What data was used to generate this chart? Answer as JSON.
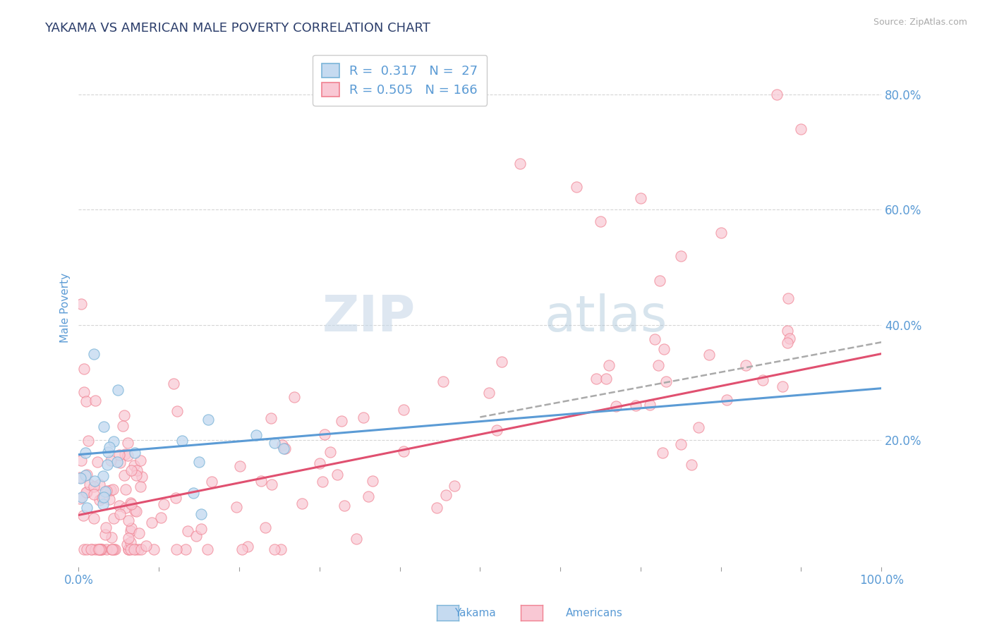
{
  "title": "YAKAMA VS AMERICAN MALE POVERTY CORRELATION CHART",
  "source_text": "Source: ZipAtlas.com",
  "ylabel": "Male Poverty",
  "xlim": [
    0.0,
    1.0
  ],
  "ylim": [
    -0.02,
    0.88
  ],
  "legend_r1": "R =  0.317",
  "legend_n1": "N =  27",
  "legend_r2": "R = 0.505",
  "legend_n2": "N = 166",
  "color_yakama_fill": "#c5daf0",
  "color_yakama_edge": "#7ab4d8",
  "color_americans_fill": "#f9c8d4",
  "color_americans_edge": "#f08090",
  "color_line_yakama": "#5b9bd5",
  "color_line_americans": "#e05070",
  "color_title": "#2c3e6b",
  "color_axis_labels": "#5b9bd5",
  "color_source": "#aaaaaa",
  "watermark_zip": "ZIP",
  "watermark_atlas": "atlas",
  "background_color": "#ffffff",
  "grid_color": "#cccccc",
  "ytick_vals": [
    0.2,
    0.4,
    0.6,
    0.8
  ],
  "ytick_labels": [
    "20.0%",
    "40.0%",
    "60.0%",
    "80.0%"
  ],
  "legend_label_yakama": "Yakama",
  "legend_label_americans": "Americans"
}
